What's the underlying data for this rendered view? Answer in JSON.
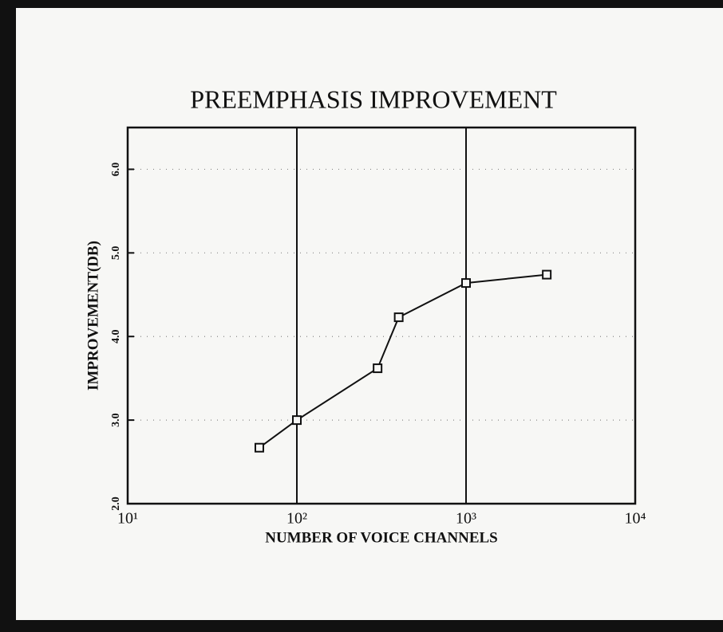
{
  "chart_data": {
    "type": "line",
    "title": "PREEMPHASIS IMPROVEMENT",
    "xlabel": "NUMBER OF VOICE CHANNELS",
    "ylabel": "IMPROVEMENT(DB)",
    "x": [
      60,
      100,
      300,
      400,
      1000,
      3000
    ],
    "values": [
      2.67,
      3.0,
      3.62,
      4.23,
      4.64,
      4.74
    ],
    "color": "#111111",
    "xscale": "log",
    "xlim": [
      10,
      10000
    ],
    "xticks": [
      {
        "value": 10,
        "label": "10¹"
      },
      {
        "value": 100,
        "label": "10²"
      },
      {
        "value": 1000,
        "label": "10³"
      },
      {
        "value": 10000,
        "label": "10⁴"
      }
    ],
    "ylim": [
      2,
      6.5
    ],
    "yticks": [
      {
        "value": 2,
        "label": "2.0"
      },
      {
        "value": 3,
        "label": "3.0"
      },
      {
        "value": 4,
        "label": "4.0"
      },
      {
        "value": 5,
        "label": "5.0"
      },
      {
        "value": 6,
        "label": "6.0"
      }
    ],
    "grid": true
  }
}
